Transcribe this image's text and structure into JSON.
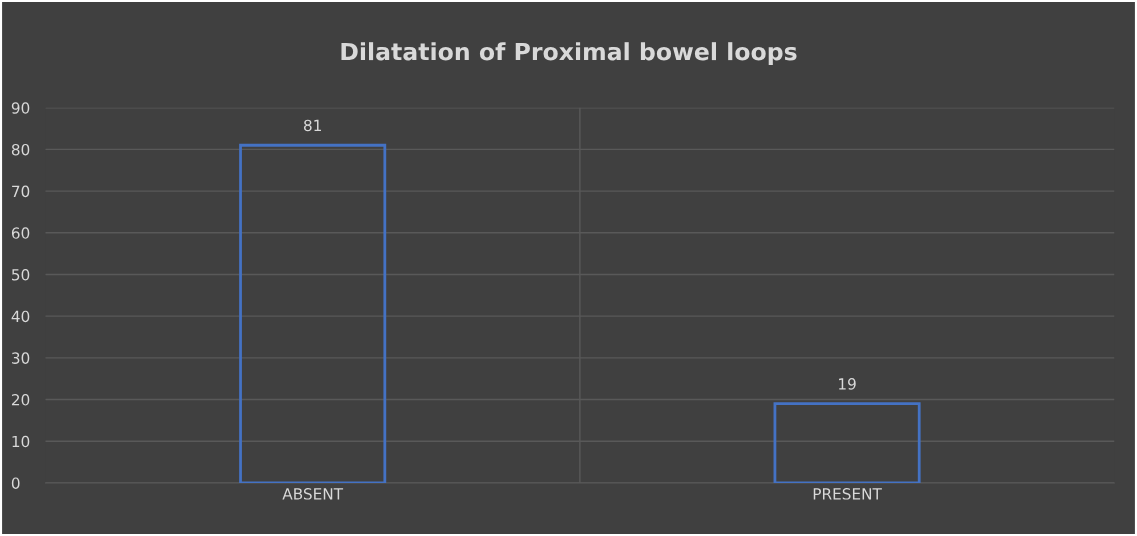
{
  "chart_data": {
    "type": "bar",
    "title": "Dilatation of Proximal bowel loops",
    "categories": [
      "ABSENT",
      "PRESENT"
    ],
    "values": [
      81,
      19
    ],
    "color": "#4472c4",
    "ylim": [
      0,
      90
    ],
    "yticks": [
      0,
      10,
      20,
      30,
      40,
      50,
      60,
      70,
      80,
      90
    ],
    "grid": true,
    "data_labels": true
  }
}
